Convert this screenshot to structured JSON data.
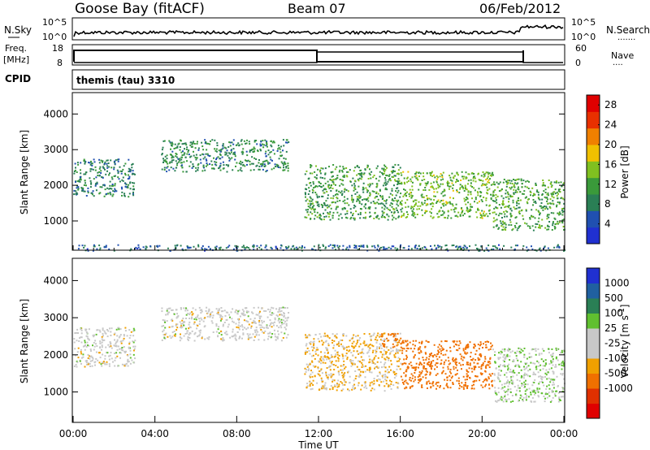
{
  "header": {
    "station": "Goose Bay (fitACF)",
    "beam": "Beam 07",
    "date": "06/Feb/2012"
  },
  "noise_panel": {
    "left_label": "N.Sky",
    "right_label": "N.Search",
    "ticks": [
      "10^5",
      "10^0"
    ]
  },
  "freq_panel": {
    "left_label_1": "Freq.",
    "left_label_2": "[MHz]",
    "left_ticks": [
      "18",
      "8"
    ],
    "right_label": "Nave",
    "right_ticks": [
      "60",
      "0"
    ]
  },
  "cpid": {
    "label": "CPID",
    "value": "themis (tau) 3310"
  },
  "colors": {
    "power_scale": [
      "#2030d0",
      "#2050b0",
      "#2a7f55",
      "#3a9a3a",
      "#80c020",
      "#f0c000",
      "#f08000",
      "#e83000",
      "#e00000"
    ],
    "velocity_scale": [
      "#2030d0",
      "#2060a0",
      "#2a7f55",
      "#60c030",
      "#c8c8c8",
      "#c8c8c8",
      "#f0a000",
      "#f07000",
      "#e03000",
      "#e00000"
    ]
  },
  "chart_data": [
    {
      "type": "heatmap",
      "title": "",
      "ylabel": "Slant Range [km]",
      "xlabel": "",
      "ylim": [
        180,
        4600
      ],
      "y_ticks": [
        "1000",
        "2000",
        "3000",
        "4000"
      ],
      "colorbar_label": "Power [dB]",
      "colorbar_ticks": [
        "4",
        "8",
        "12",
        "16",
        "20",
        "24",
        "28"
      ],
      "colorbar_range": [
        0,
        30
      ],
      "scatter_regions": [
        {
          "t_start": 0.0,
          "t_end": 3.0,
          "range_top": 2750,
          "range_bottom": 1700,
          "level": 6
        },
        {
          "t_start": 4.3,
          "t_end": 10.5,
          "range_top": 3300,
          "range_bottom": 2400,
          "level": 7
        },
        {
          "t_start": 11.3,
          "t_end": 16.0,
          "range_top": 2600,
          "range_bottom": 1050,
          "level": 9
        },
        {
          "t_start": 16.0,
          "t_end": 20.5,
          "range_top": 2400,
          "range_bottom": 1100,
          "level": 12
        },
        {
          "t_start": 20.5,
          "t_end": 24.0,
          "range_top": 2200,
          "range_bottom": 750,
          "level": 10
        },
        {
          "t_start": 0.0,
          "t_end": 24.0,
          "range_top": 350,
          "range_bottom": 180,
          "level": 4
        }
      ]
    },
    {
      "type": "heatmap",
      "title": "",
      "ylabel": "Slant Range [km]",
      "xlabel": "Time UT",
      "x_ticks": [
        "00:00",
        "04:00",
        "08:00",
        "12:00",
        "16:00",
        "20:00",
        "00:00"
      ],
      "ylim": [
        180,
        4600
      ],
      "y_ticks": [
        "1000",
        "2000",
        "3000",
        "4000"
      ],
      "colorbar_label": "Velocity [m s^-1]",
      "colorbar_ticks": [
        "1000",
        "500",
        "100",
        "25",
        "-25",
        "-100",
        "-500",
        "-1000"
      ],
      "scatter_regions": [
        {
          "t_start": 0.0,
          "t_end": 3.0,
          "range_top": 2750,
          "range_bottom": 1700,
          "velocity": 0
        },
        {
          "t_start": 4.3,
          "t_end": 10.5,
          "range_top": 3300,
          "range_bottom": 2400,
          "velocity": 0
        },
        {
          "t_start": 11.3,
          "t_end": 16.0,
          "range_top": 2600,
          "range_bottom": 1050,
          "velocity": -30
        },
        {
          "t_start": 15.0,
          "t_end": 16.0,
          "range_top": 2600,
          "range_bottom": 2200,
          "velocity": -300
        },
        {
          "t_start": 16.0,
          "t_end": 20.5,
          "range_top": 2400,
          "range_bottom": 1100,
          "velocity": -150
        },
        {
          "t_start": 20.5,
          "t_end": 24.0,
          "range_top": 2200,
          "range_bottom": 750,
          "velocity": 20
        }
      ]
    }
  ]
}
